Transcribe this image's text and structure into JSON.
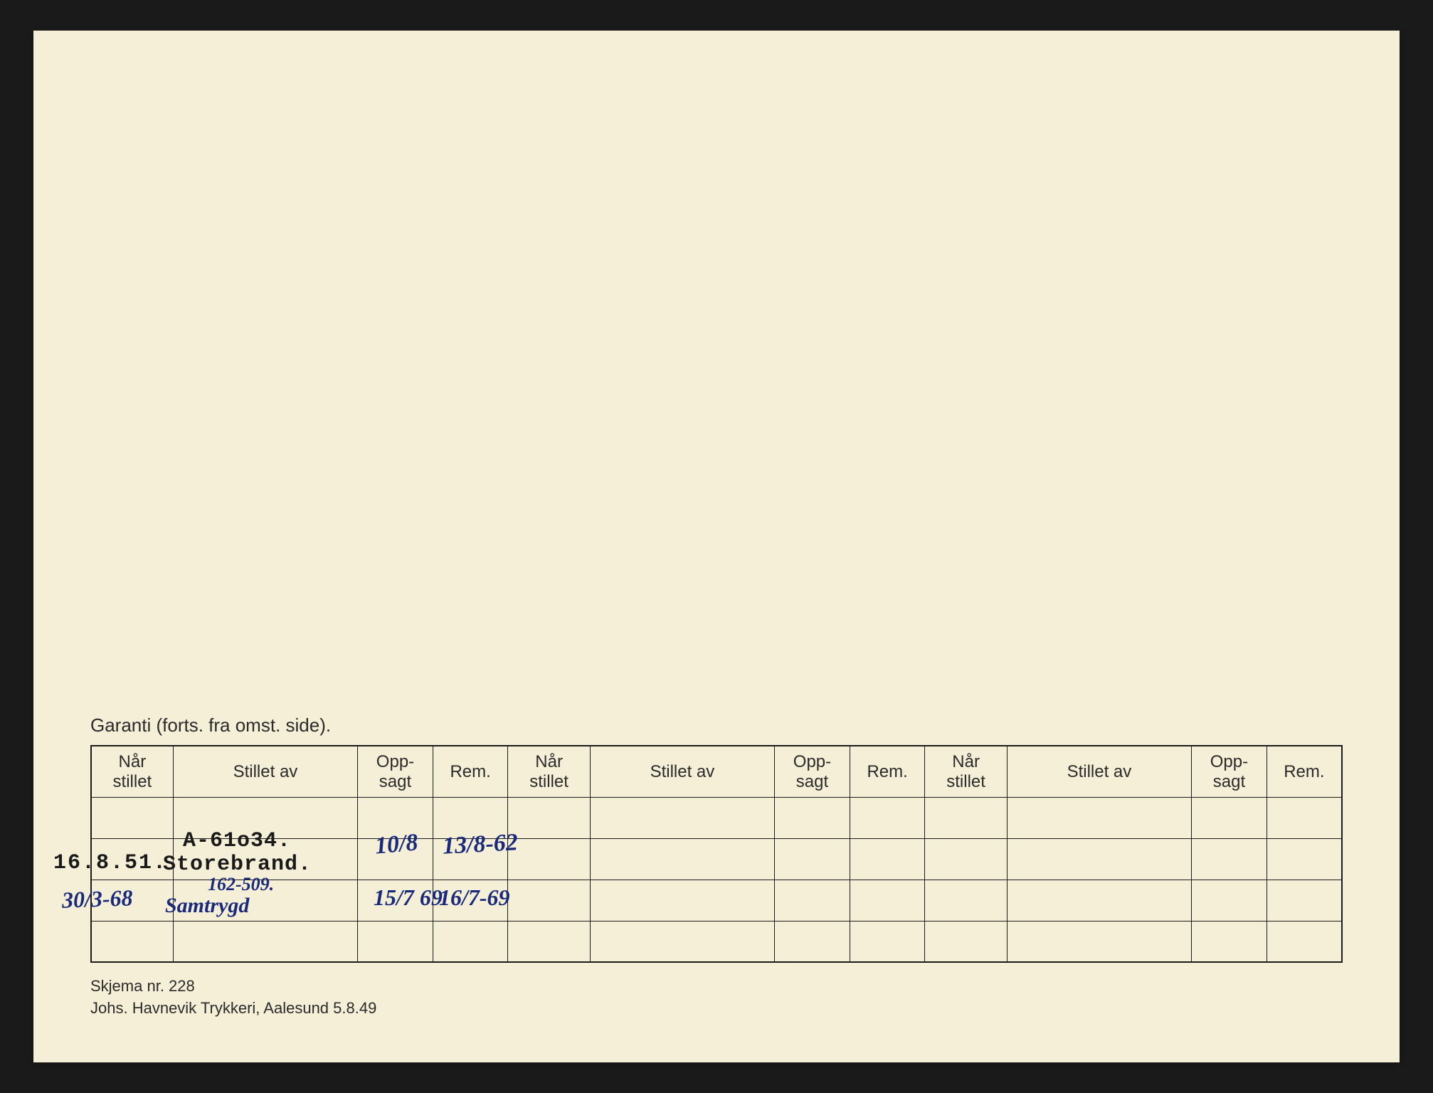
{
  "table": {
    "title": "Garanti (forts. fra omst. side).",
    "headers": {
      "nar_stillet": "Når\nstillet",
      "stillet_av": "Stillet av",
      "opp_sagt": "Opp-\nsagt",
      "rem": "Rem."
    },
    "column_groups": 3,
    "body_rows": 4
  },
  "entries": {
    "row1": {
      "date": "16.8.51.",
      "stillet_av_line1": "A-61o34.",
      "stillet_av_line2": "Storebrand.",
      "oppsagt": "10/8",
      "rem": "13/8-62"
    },
    "row2": {
      "date": "30/3-68",
      "stillet_av_line1": "162-509.",
      "stillet_av_line2": "Samtrygd",
      "oppsagt": "15/7 69",
      "rem": "16/7-69"
    }
  },
  "footer": {
    "line1": "Skjema nr. 228",
    "line2": "Johs. Havnevik Trykkeri, Aalesund 5.8.49"
  },
  "styling": {
    "card_bg": "#f5efd8",
    "page_bg": "#1a1a1a",
    "border_color": "#1a1a1a",
    "handwriting_color": "#1a2a7a",
    "typed_color": "#1a1a1a",
    "header_font_size": 24,
    "title_font_size": 26,
    "footer_font_size": 22
  }
}
